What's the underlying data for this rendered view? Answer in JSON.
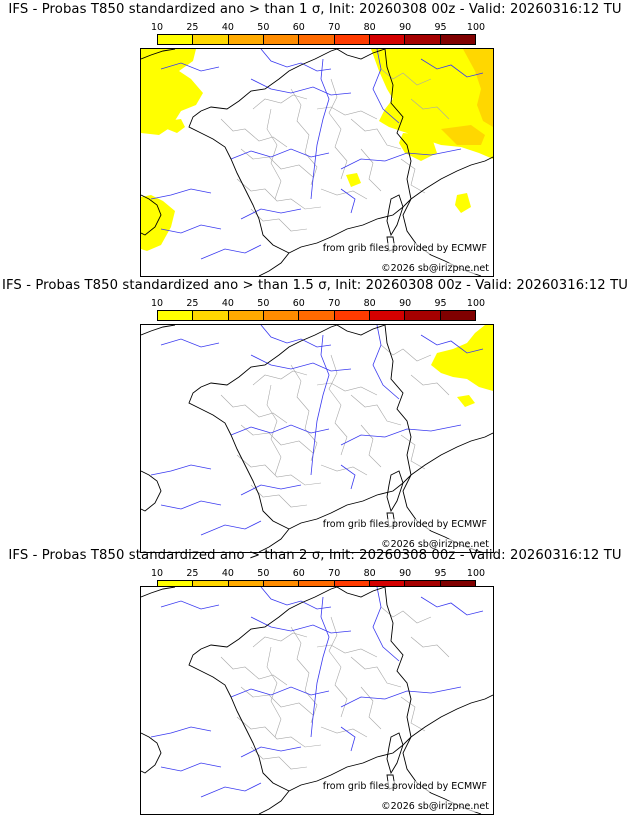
{
  "colors": {
    "legend": [
      "#ffff00",
      "#ffd700",
      "#ffaa00",
      "#ff8c00",
      "#ff6a00",
      "#ff3b00",
      "#d40000",
      "#a50000",
      "#800000"
    ],
    "coast": "#000000",
    "rivers": "#3a3af0",
    "borders": "#a8a8a8"
  },
  "legend_ticks": [
    "10",
    "25",
    "40",
    "50",
    "60",
    "70",
    "80",
    "90",
    "95",
    "100"
  ],
  "panels": [
    {
      "title": "IFS - Probas T850  standardized ano > than 1 σ, Init: 20260308 00z - Valid: 20260316:12 TU",
      "credit": "from grib files provided by ECMWF",
      "copyright": "©2026 sb@irizpne.net",
      "prob_areas": [
        "10",
        "25"
      ]
    },
    {
      "title": "IFS - Probas T850  standardized ano > than 1.5 σ, Init: 20260308 00z - Valid: 20260316:12 TU",
      "credit": "from grib files provided by ECMWF",
      "copyright": "©2026 sb@irizpne.net",
      "prob_areas": [
        "10"
      ]
    },
    {
      "title": "IFS - Probas T850  standardized ano > than 2 σ, Init: 20260308 00z - Valid: 20260316:12 TU",
      "credit": "from grib files provided by ECMWF",
      "copyright": "©2026 sb@irizpne.net",
      "prob_areas": []
    }
  ]
}
